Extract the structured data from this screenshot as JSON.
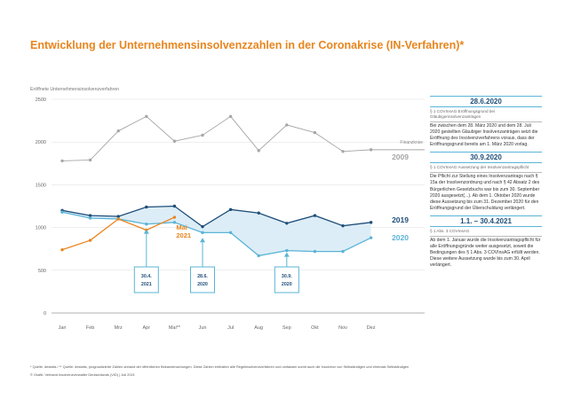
{
  "header": {
    "title": "Entwicklung der Unternehmensinsolvenzzahlen in der Coronakrise (IN-Verfahren)*"
  },
  "chart_data": {
    "type": "line",
    "ylabel": "Eröffnete Unternehmensinsolvenzverfahren",
    "ylim": [
      0,
      2500
    ],
    "yticks": [
      0,
      500,
      1000,
      1500,
      2000,
      2500
    ],
    "categories": [
      "Jan",
      "Feb",
      "Mrz",
      "Apr",
      "Mai**",
      "Jun",
      "Jul",
      "Aug",
      "Sep",
      "Okt",
      "Nov",
      "Dez"
    ],
    "grid": true,
    "legend": "right",
    "series": [
      {
        "name": "2009",
        "color": "#a6a6a6",
        "values": [
          1780,
          1790,
          2130,
          2300,
          2010,
          2080,
          2300,
          1900,
          2200,
          2110,
          1890,
          1910
        ]
      },
      {
        "name": "2019",
        "color": "#1f4e79",
        "values": [
          1200,
          1140,
          1130,
          1240,
          1250,
          1010,
          1210,
          1170,
          1050,
          1140,
          1020,
          1060
        ]
      },
      {
        "name": "2020",
        "color": "#5ab4d6",
        "values": [
          1180,
          1110,
          1100,
          1040,
          1060,
          940,
          940,
          670,
          730,
          720,
          720,
          880
        ]
      },
      {
        "name": "Mai 2021",
        "color": "#e8851e",
        "values": [
          740,
          850,
          1100,
          970,
          1120,
          null,
          null,
          null,
          null,
          null,
          null,
          null
        ]
      }
    ],
    "series_label_extra": "Finanzkrise",
    "annotations": [
      {
        "label": "30.4. 2021",
        "category": "Apr"
      },
      {
        "label": "28.6. 2020",
        "category": "Jun"
      },
      {
        "label": "30.9. 2020",
        "category": "Sep"
      }
    ]
  },
  "sidebar": {
    "sections": [
      {
        "date": "28.6.2020",
        "sub": "§ 1 COVInsAG Eröffnungsgrund bei Gläubigerinsolvenzanträgen",
        "body": "Bei zwischen dem 28. März 2020 und dem 28. Juli 2020 gestellten Gläubiger Insolvenzanträgen setzt die Eröffnung des Insolvenzverfahrens voraus, dass der Eröffnungsgrund bereits am 1. März 2020 vorlag."
      },
      {
        "date": "30.9.2020",
        "sub": "§ 1 COVInsAG Aussetzung der Insolvenzantragspflicht",
        "body": "Die Pflicht zur Stellung eines Insolvenzantrags nach § 15a der Insolvenzordnung und nach § 42 Absatz 2 des Bürgerlichen Gesetzbuchs war bis zum 30. September 2020 ausgesetzt(...). Ab dem 1. Oktober 2020 wurde diese Aussetzung bis zum 31. Dezember 2020 für den Eröffnungsgrund der Überschuldung verlängert."
      },
      {
        "date": "1.1. – 30.4.2021",
        "sub": "§ 1 Abs. 3 COVInsAG",
        "body": "Ab dem 1. Januar wurde die Insolvenzantragspflicht für alle Eröffnungsgründe weiter ausgesetzt, soweit die Bedingungen des § 1 Abs. 3 COVInsAG erfüllt werden. Diese weitere Aussetzung wurde bis zum 30. April verlängert."
      }
    ]
  },
  "footer": {
    "line1": "* Quelle: destatis / ** Quelle: destatis, prognostizierte Zahlen anhand der öffentlichen Bekanntmachungen. Diese Zahlen enthalten alle Regelinsolvenzverfahren und umfassen somit auch die Insolvenz von Selbständigen und ehemals Selbständigen",
    "line2": "© Grafik: Verband Insolvenzverwalter Deutschlands (VID) | Juli 2021"
  }
}
